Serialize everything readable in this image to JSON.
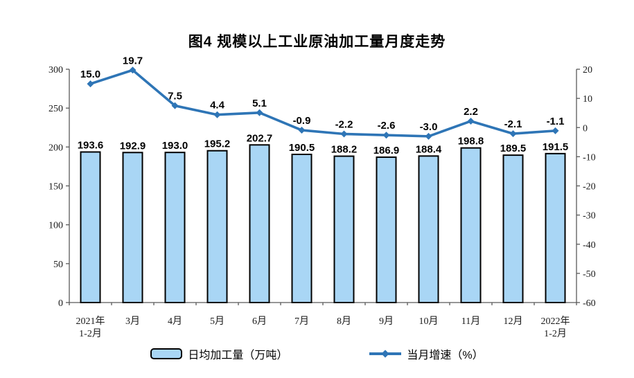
{
  "chart_data": {
    "type": "combo-bar-line",
    "title": "图4 规模以上工业原油加工量月度走势",
    "categories": [
      [
        "2021年",
        "1-2月"
      ],
      [
        "3月"
      ],
      [
        "4月"
      ],
      [
        "5月"
      ],
      [
        "6月"
      ],
      [
        "7月"
      ],
      [
        "8月"
      ],
      [
        "9月"
      ],
      [
        "10月"
      ],
      [
        "11月"
      ],
      [
        "12月"
      ],
      [
        "2022年",
        "1-2月"
      ]
    ],
    "series": [
      {
        "type": "bar",
        "name": "日均加工量（万吨）",
        "axis": "left",
        "values": [
          193.6,
          192.9,
          193.0,
          195.2,
          202.7,
          190.5,
          188.2,
          186.9,
          188.4,
          198.8,
          189.5,
          191.5
        ]
      },
      {
        "type": "line",
        "name": "当月增速（%）",
        "axis": "right",
        "values": [
          15.0,
          19.7,
          7.5,
          4.4,
          5.1,
          -0.9,
          -2.2,
          -2.6,
          -3.0,
          2.2,
          -2.1,
          -1.1
        ]
      }
    ],
    "value_labels": {
      "bar": [
        "193.6",
        "192.9",
        "193.0",
        "195.2",
        "202.7",
        "190.5",
        "188.2",
        "186.9",
        "188.4",
        "198.8",
        "189.5",
        "191.5"
      ],
      "line": [
        "15.0",
        "19.7",
        "7.5",
        "4.4",
        "5.1",
        "-0.9",
        "-2.2",
        "-2.6",
        "-3.0",
        "2.2",
        "-2.1",
        "-1.1"
      ]
    },
    "left_axis": {
      "min": 0,
      "max": 300,
      "step": 50,
      "ticks": [
        0,
        50,
        100,
        150,
        200,
        250,
        300
      ]
    },
    "right_axis": {
      "min": -60,
      "max": 20,
      "step": 10,
      "ticks": [
        -60,
        -50,
        -40,
        -30,
        -20,
        -10,
        0,
        10,
        20
      ]
    },
    "legend_position": "bottom",
    "grid": false,
    "colors": {
      "bar_fill": "#A9D6F5",
      "bar_stroke": "#000000",
      "line": "#2E75B6",
      "axis": "#595959",
      "text": "#000000"
    }
  }
}
